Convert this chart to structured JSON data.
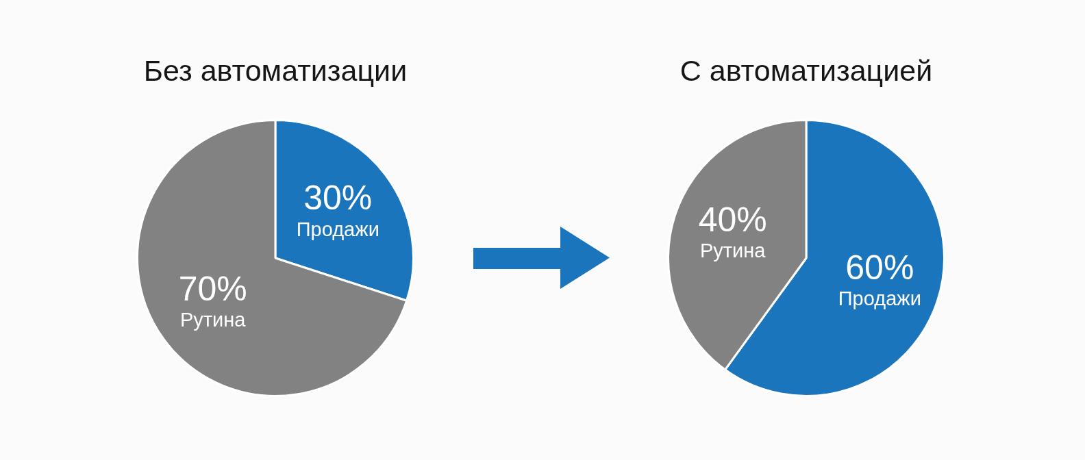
{
  "chart_data": [
    {
      "type": "pie",
      "title": "Без автоматизации",
      "categories": [
        "Продажи",
        "Рутина"
      ],
      "values": [
        30,
        70
      ],
      "colors": [
        "#1b75bc",
        "#828282"
      ],
      "value_labels": [
        "30%",
        "70%"
      ]
    },
    {
      "type": "pie",
      "title": "С автоматизацией",
      "categories": [
        "Продажи",
        "Рутина"
      ],
      "values": [
        60,
        40
      ],
      "colors": [
        "#1b75bc",
        "#828282"
      ],
      "value_labels": [
        "60%",
        "40%"
      ]
    }
  ]
}
